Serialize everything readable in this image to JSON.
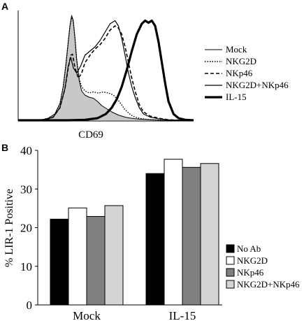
{
  "chart_data": [
    {
      "panel_label": "A",
      "type": "line",
      "title": "",
      "xlabel": "CD69",
      "ylabel": "",
      "grid": false,
      "legend_position": "right",
      "series": [
        {
          "name": "Mock",
          "style": "thin-solid",
          "fill": "#c8c8c8",
          "x": [
            0,
            10,
            20,
            28,
            36,
            44,
            50,
            54,
            57,
            60,
            62,
            64,
            66,
            68,
            70,
            73,
            76,
            80,
            85,
            90,
            95,
            100,
            106,
            112,
            120,
            128,
            135,
            140,
            148,
            160,
            175,
            190,
            210
          ],
          "y": [
            0,
            0,
            0,
            0.5,
            2,
            6,
            16,
            32,
            52,
            75,
            90,
            100,
            95,
            78,
            58,
            38,
            28,
            24,
            22,
            21,
            18,
            14,
            11,
            8,
            5,
            3,
            2,
            1.5,
            1,
            0.5,
            0,
            0,
            0
          ]
        },
        {
          "name": "NKG2D",
          "style": "dotted",
          "x": [
            0,
            10,
            20,
            28,
            36,
            44,
            50,
            54,
            57,
            60,
            62,
            64,
            66,
            68,
            70,
            73,
            76,
            80,
            85,
            90,
            96,
            102,
            108,
            114,
            120,
            128,
            135,
            140,
            148,
            160,
            175,
            190,
            210
          ],
          "y": [
            0,
            0,
            0,
            0.5,
            2,
            6,
            16,
            32,
            52,
            75,
            90,
            98,
            94,
            78,
            58,
            40,
            32,
            28,
            26,
            27,
            26,
            27,
            26,
            24,
            19,
            10,
            5,
            3,
            1.5,
            0.5,
            0,
            0,
            0
          ]
        },
        {
          "name": "NKp46",
          "style": "dashed",
          "x": [
            0,
            10,
            30,
            42,
            50,
            56,
            60,
            63,
            65,
            68,
            72,
            76,
            80,
            86,
            92,
            98,
            104,
            110,
            116,
            120,
            124,
            128,
            132,
            136,
            140,
            145,
            150,
            158,
            168,
            180,
            195,
            210
          ],
          "y": [
            0,
            0,
            0,
            3,
            12,
            30,
            50,
            62,
            63,
            50,
            40,
            45,
            55,
            62,
            68,
            72,
            78,
            86,
            90,
            88,
            82,
            70,
            55,
            40,
            28,
            15,
            8,
            4,
            2,
            0.5,
            0,
            0
          ]
        },
        {
          "name": "NKG2D+NKp46",
          "style": "solid",
          "x": [
            0,
            10,
            30,
            42,
            50,
            56,
            60,
            63,
            66,
            70,
            75,
            80,
            86,
            92,
            98,
            104,
            110,
            116,
            120,
            124,
            128,
            132,
            136,
            140,
            145,
            150,
            158,
            168,
            180,
            195,
            210
          ],
          "y": [
            0,
            0,
            0,
            3,
            12,
            30,
            52,
            60,
            50,
            45,
            52,
            62,
            66,
            70,
            76,
            84,
            92,
            95,
            90,
            78,
            62,
            45,
            32,
            22,
            12,
            6,
            3,
            1.5,
            0.5,
            0,
            0
          ]
        },
        {
          "name": "IL-15",
          "style": "thick-solid",
          "x": [
            0,
            60,
            80,
            95,
            105,
            112,
            118,
            124,
            130,
            136,
            142,
            148,
            152,
            156,
            160,
            164,
            168,
            172,
            176,
            180,
            186,
            192,
            200,
            210
          ],
          "y": [
            0,
            0,
            0.5,
            2,
            6,
            12,
            20,
            32,
            48,
            66,
            82,
            92,
            95,
            93,
            95,
            90,
            75,
            55,
            35,
            18,
            6,
            2,
            0.5,
            0
          ]
        }
      ]
    },
    {
      "panel_label": "B",
      "type": "bar",
      "title": "",
      "xlabel": "",
      "ylabel": "% LIR-1 Positive",
      "ylim": [
        0,
        40
      ],
      "yticks": [
        0,
        10,
        20,
        30,
        40
      ],
      "grid": false,
      "legend_position": "right",
      "categories": [
        "Mock",
        "IL-15"
      ],
      "series": [
        {
          "name": "No Ab",
          "color": "#000000",
          "values": [
            22.2,
            34.0
          ]
        },
        {
          "name": "NKG2D",
          "color": "#ffffff",
          "values": [
            25.1,
            37.7
          ]
        },
        {
          "name": "NKp46",
          "color": "#808080",
          "values": [
            22.9,
            35.6
          ]
        },
        {
          "name": "NKG2D+NKp46",
          "color": "#d4d4d4",
          "values": [
            25.7,
            36.6
          ]
        }
      ]
    }
  ]
}
